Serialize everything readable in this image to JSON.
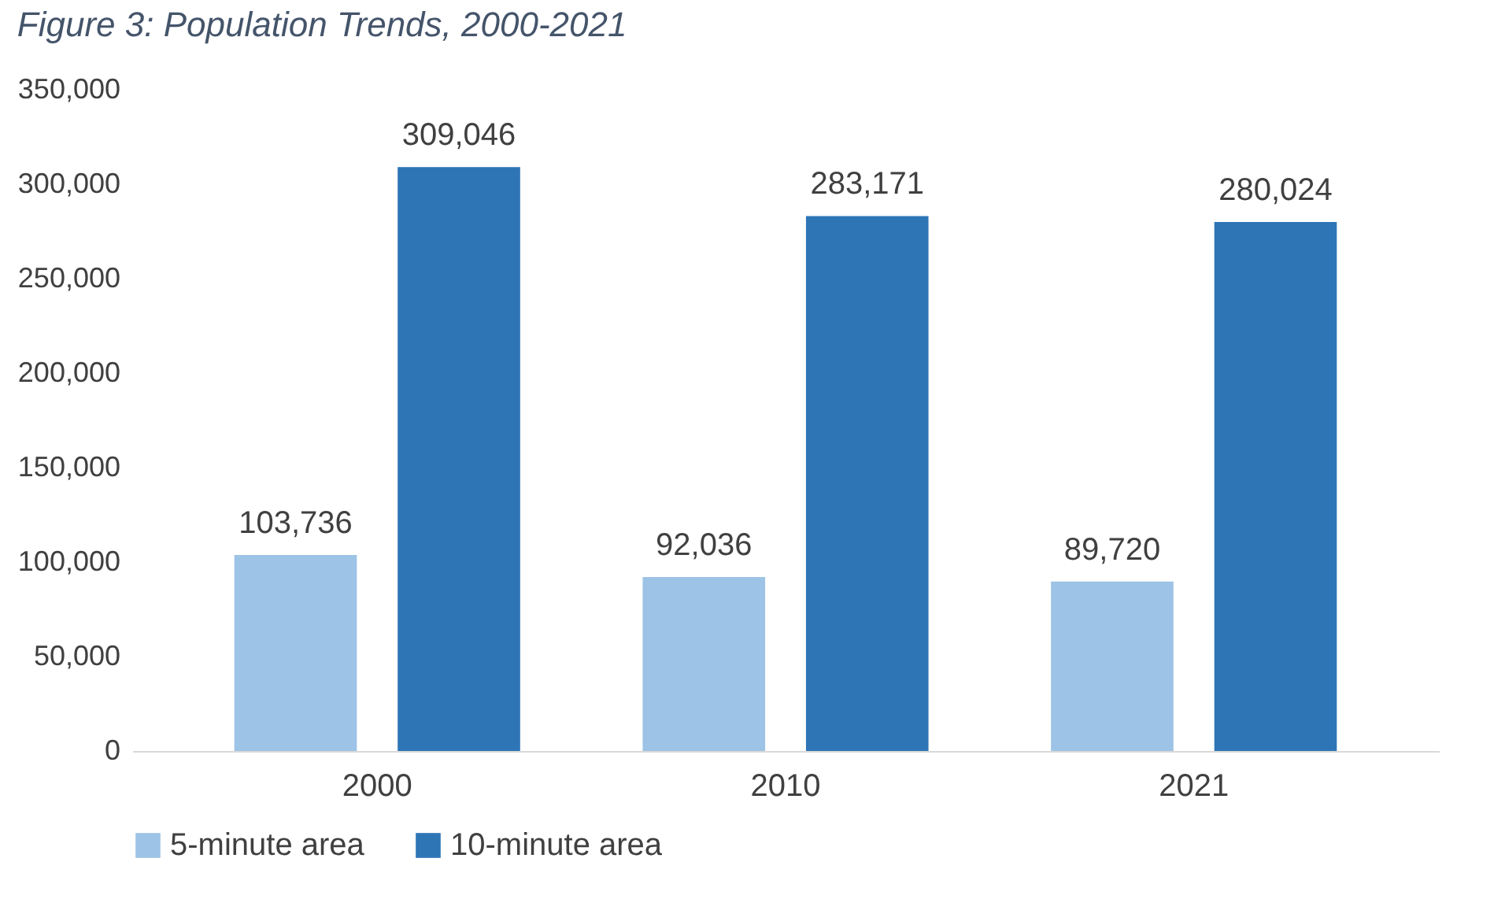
{
  "chart_data": {
    "type": "bar",
    "title": "Figure 3: Population Trends, 2000-2021",
    "categories": [
      "2000",
      "2010",
      "2021"
    ],
    "series": [
      {
        "name": "5-minute area",
        "color": "#9dc3e6",
        "values": [
          103736,
          92036,
          89720
        ],
        "value_labels": [
          "103,736",
          "92,036",
          "89,720"
        ]
      },
      {
        "name": "10-minute area",
        "color": "#2e75b6",
        "values": [
          309046,
          283171,
          280024
        ],
        "value_labels": [
          "309,046",
          "283,171",
          "280,024"
        ]
      }
    ],
    "ylim": [
      0,
      350000
    ],
    "yticks": [
      0,
      {
        "value": 50000,
        "label": "50,000"
      },
      {
        "value": 100000,
        "label": "100,000"
      },
      {
        "value": 150000,
        "label": "150,000"
      },
      {
        "value": 200000,
        "label": "200,000"
      },
      {
        "value": 250000,
        "label": "250,000"
      },
      {
        "value": 300000,
        "label": "300,000"
      },
      {
        "value": 350000,
        "label": "350,000"
      }
    ],
    "grid": false,
    "legend": "bottom"
  }
}
